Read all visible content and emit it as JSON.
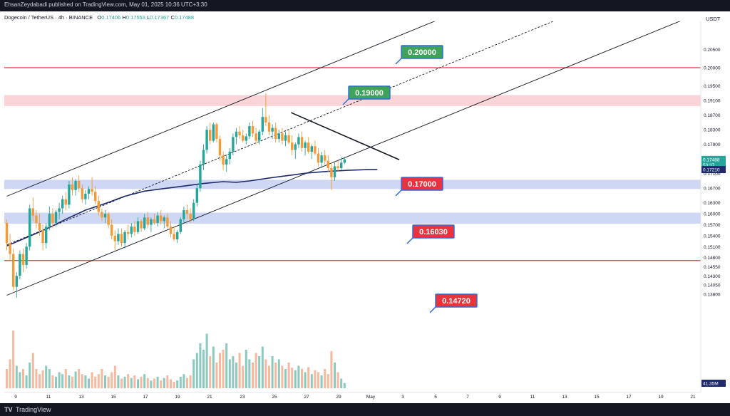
{
  "header": {
    "publisher_line": "EhsanZeydabadi published on TradingView.com, May 01, 2025 10:36 UTC+3:30"
  },
  "legend": {
    "symbol": "Dogecoin / TetherUS · 4h · BINANCE",
    "open_label": "O",
    "open": "0.17406",
    "high_label": "H",
    "high": "0.17553",
    "low_label": "L",
    "low": "0.17367",
    "close_label": "C",
    "close": "0.17488"
  },
  "price_axis": {
    "currency": "USDT",
    "ticks": [
      "0.20500",
      "0.20000",
      "0.19500",
      "0.19100",
      "0.18700",
      "0.18300",
      "0.17900",
      "0.17500",
      "0.17100",
      "0.16700",
      "0.16300",
      "0.16000",
      "0.15700",
      "0.15400",
      "0.15100",
      "0.14800",
      "0.14550",
      "0.14300",
      "0.14050",
      "0.13800"
    ],
    "last_price_label": "0.17488",
    "countdown_label": "53:37",
    "ma_label": "0.17210",
    "volume_label": "41.35M",
    "last_price_color": "#26a69a",
    "ma_color": "#1e2a6b"
  },
  "time_axis": {
    "ticks": [
      "9",
      "11",
      "13",
      "15",
      "17",
      "19",
      "21",
      "23",
      "25",
      "27",
      "29",
      "May",
      "3",
      "5",
      "7",
      "9",
      "11",
      "13",
      "15",
      "17",
      "19",
      "21"
    ]
  },
  "annotations": [
    {
      "label": "0.20000",
      "color": "#3fa35b"
    },
    {
      "label": "0.19000",
      "color": "#3fa35b"
    },
    {
      "label": "0.17000",
      "color": "#e8343f"
    },
    {
      "label": "0.16030",
      "color": "#e8343f"
    },
    {
      "label": "0.14720",
      "color": "#e8343f"
    }
  ],
  "footer": {
    "brand": "TradingView",
    "logo": "TV"
  },
  "chart_data": {
    "type": "candlestick",
    "title": "Dogecoin / TetherUS · 4h · BINANCE",
    "ylabel": "USDT",
    "ylim": [
      0.1352,
      0.2073
    ],
    "colors": {
      "up": "#26a69a",
      "down": "#f29b38",
      "ma": "#1e2a6b",
      "resistance": "#e8343f",
      "support_zone": "#c9d3f2",
      "resistance_zone": "#f9cfd3"
    },
    "horizontal_lines": [
      0.2,
      0.1472
    ],
    "zones": [
      {
        "from": 0.1895,
        "to": 0.1925,
        "kind": "resistance"
      },
      {
        "from": 0.1668,
        "to": 0.1693,
        "kind": "support"
      },
      {
        "from": 0.1573,
        "to": 0.1603,
        "kind": "support"
      }
    ],
    "trend_channel": {
      "upper": [
        [
          0,
          0.1648
        ],
        [
          113,
          0.2063
        ]
      ],
      "middle": [
        [
          0,
          0.1515
        ],
        [
          113,
          0.193
        ]
      ],
      "lower": [
        [
          0,
          0.1377
        ],
        [
          113,
          0.179
        ]
      ]
    },
    "descending_line": [
      [
        86.7,
        0.1877
      ],
      [
        119.7,
        0.1748
      ]
    ],
    "moving_average": [
      [
        0,
        0.1512
      ],
      [
        6,
        0.1535
      ],
      [
        12,
        0.1558
      ],
      [
        18,
        0.1585
      ],
      [
        24,
        0.161
      ],
      [
        30,
        0.1628
      ],
      [
        36,
        0.1648
      ],
      [
        42,
        0.1662
      ],
      [
        48,
        0.1669
      ],
      [
        54,
        0.1676
      ],
      [
        60,
        0.1683
      ],
      [
        66,
        0.1688
      ],
      [
        70,
        0.1686
      ],
      [
        74,
        0.169
      ],
      [
        80,
        0.1698
      ],
      [
        86,
        0.1705
      ],
      [
        92,
        0.1712
      ],
      [
        98,
        0.1716
      ],
      [
        104,
        0.1719
      ],
      [
        110,
        0.1721
      ],
      [
        113,
        0.1721
      ]
    ],
    "candles": [
      [
        0.1575,
        0.1585,
        0.15,
        0.152
      ],
      [
        0.152,
        0.1545,
        0.147,
        0.149
      ],
      [
        0.149,
        0.1505,
        0.139,
        0.14
      ],
      [
        0.14,
        0.144,
        0.137,
        0.143
      ],
      [
        0.143,
        0.15,
        0.142,
        0.149
      ],
      [
        0.149,
        0.1505,
        0.144,
        0.146
      ],
      [
        0.146,
        0.152,
        0.145,
        0.151
      ],
      [
        0.151,
        0.1625,
        0.15,
        0.1615
      ],
      [
        0.1615,
        0.1645,
        0.158,
        0.1595
      ],
      [
        0.1595,
        0.161,
        0.156,
        0.1575
      ],
      [
        0.1575,
        0.16,
        0.154,
        0.1555
      ],
      [
        0.1555,
        0.157,
        0.15,
        0.152
      ],
      [
        0.152,
        0.1575,
        0.1505,
        0.1565
      ],
      [
        0.1565,
        0.162,
        0.1555,
        0.16
      ],
      [
        0.16,
        0.1615,
        0.156,
        0.1575
      ],
      [
        0.1575,
        0.161,
        0.1565,
        0.1605
      ],
      [
        0.1605,
        0.163,
        0.1585,
        0.1615
      ],
      [
        0.1615,
        0.165,
        0.16,
        0.164
      ],
      [
        0.164,
        0.166,
        0.161,
        0.1625
      ],
      [
        0.1625,
        0.169,
        0.1615,
        0.168
      ],
      [
        0.168,
        0.17,
        0.165,
        0.1665
      ],
      [
        0.1665,
        0.1695,
        0.165,
        0.169
      ],
      [
        0.169,
        0.1705,
        0.166,
        0.167
      ],
      [
        0.167,
        0.168,
        0.163,
        0.164
      ],
      [
        0.164,
        0.1665,
        0.1625,
        0.1655
      ],
      [
        0.1655,
        0.1675,
        0.164,
        0.1668
      ],
      [
        0.1668,
        0.17,
        0.165,
        0.166
      ],
      [
        0.166,
        0.1675,
        0.1625,
        0.1635
      ],
      [
        0.1635,
        0.165,
        0.1595,
        0.1605
      ],
      [
        0.1605,
        0.1615,
        0.158,
        0.159
      ],
      [
        0.159,
        0.161,
        0.1575,
        0.16
      ],
      [
        0.16,
        0.1605,
        0.156,
        0.157
      ],
      [
        0.157,
        0.1585,
        0.153,
        0.154
      ],
      [
        0.154,
        0.1555,
        0.15,
        0.1525
      ],
      [
        0.1525,
        0.156,
        0.1515,
        0.1545
      ],
      [
        0.1545,
        0.156,
        0.151,
        0.152
      ],
      [
        0.152,
        0.1555,
        0.1505,
        0.155
      ],
      [
        0.155,
        0.157,
        0.153,
        0.1545
      ],
      [
        0.1545,
        0.1575,
        0.1535,
        0.1565
      ],
      [
        0.1565,
        0.158,
        0.154,
        0.155
      ],
      [
        0.155,
        0.159,
        0.1545,
        0.158
      ],
      [
        0.158,
        0.1585,
        0.155,
        0.156
      ],
      [
        0.156,
        0.16,
        0.1555,
        0.159
      ],
      [
        0.159,
        0.1605,
        0.156,
        0.157
      ],
      [
        0.157,
        0.159,
        0.155,
        0.1585
      ],
      [
        0.1585,
        0.16,
        0.157,
        0.1575
      ],
      [
        0.1575,
        0.1605,
        0.1565,
        0.1595
      ],
      [
        0.1595,
        0.161,
        0.157,
        0.158
      ],
      [
        0.158,
        0.1595,
        0.156,
        0.159
      ],
      [
        0.159,
        0.16,
        0.156,
        0.1565
      ],
      [
        0.1565,
        0.158,
        0.1535,
        0.1545
      ],
      [
        0.1545,
        0.1565,
        0.1525,
        0.153
      ],
      [
        0.153,
        0.1555,
        0.152,
        0.155
      ],
      [
        0.155,
        0.159,
        0.1545,
        0.1585
      ],
      [
        0.1585,
        0.162,
        0.1575,
        0.161
      ],
      [
        0.161,
        0.1625,
        0.1585,
        0.16
      ],
      [
        0.16,
        0.1615,
        0.1575,
        0.1585
      ],
      [
        0.1585,
        0.164,
        0.158,
        0.163
      ],
      [
        0.163,
        0.168,
        0.162,
        0.167
      ],
      [
        0.167,
        0.1745,
        0.166,
        0.1735
      ],
      [
        0.1735,
        0.179,
        0.172,
        0.1775
      ],
      [
        0.1775,
        0.184,
        0.1765,
        0.183
      ],
      [
        0.183,
        0.185,
        0.179,
        0.18
      ],
      [
        0.18,
        0.185,
        0.1795,
        0.1845
      ],
      [
        0.1845,
        0.185,
        0.1795,
        0.1805
      ],
      [
        0.1805,
        0.1815,
        0.1745,
        0.176
      ],
      [
        0.176,
        0.177,
        0.172,
        0.1735
      ],
      [
        0.1735,
        0.176,
        0.1715,
        0.175
      ],
      [
        0.175,
        0.178,
        0.1735,
        0.177
      ],
      [
        0.177,
        0.182,
        0.176,
        0.181
      ],
      [
        0.181,
        0.1835,
        0.179,
        0.1825
      ],
      [
        0.1825,
        0.184,
        0.1805,
        0.1815
      ],
      [
        0.1815,
        0.183,
        0.1795,
        0.18
      ],
      [
        0.18,
        0.182,
        0.179,
        0.1812
      ],
      [
        0.1812,
        0.185,
        0.1805,
        0.184
      ],
      [
        0.184,
        0.1855,
        0.181,
        0.182
      ],
      [
        0.182,
        0.1835,
        0.179,
        0.18
      ],
      [
        0.18,
        0.183,
        0.179,
        0.1825
      ],
      [
        0.1825,
        0.189,
        0.1815,
        0.1865
      ],
      [
        0.1865,
        0.193,
        0.184,
        0.185
      ],
      [
        0.185,
        0.187,
        0.1815,
        0.1825
      ],
      [
        0.1825,
        0.1845,
        0.1805,
        0.1835
      ],
      [
        0.1835,
        0.185,
        0.1795,
        0.1805
      ],
      [
        0.1805,
        0.183,
        0.1795,
        0.182
      ],
      [
        0.182,
        0.1835,
        0.179,
        0.18
      ],
      [
        0.18,
        0.1825,
        0.1785,
        0.1815
      ],
      [
        0.1815,
        0.183,
        0.179,
        0.1795
      ],
      [
        0.1795,
        0.1815,
        0.176,
        0.1775
      ],
      [
        0.1775,
        0.1795,
        0.175,
        0.179
      ],
      [
        0.179,
        0.182,
        0.178,
        0.181
      ],
      [
        0.181,
        0.1825,
        0.177,
        0.178
      ],
      [
        0.178,
        0.18,
        0.176,
        0.1795
      ],
      [
        0.1795,
        0.181,
        0.1765,
        0.177
      ],
      [
        0.177,
        0.179,
        0.175,
        0.1785
      ],
      [
        0.1785,
        0.18,
        0.176,
        0.1765
      ],
      [
        0.1765,
        0.178,
        0.173,
        0.174
      ],
      [
        0.174,
        0.177,
        0.1725,
        0.176
      ],
      [
        0.176,
        0.1775,
        0.1735,
        0.1745
      ],
      [
        0.1745,
        0.176,
        0.1715,
        0.1725
      ],
      [
        0.1725,
        0.174,
        0.1665,
        0.17
      ],
      [
        0.17,
        0.174,
        0.169,
        0.173
      ],
      [
        0.173,
        0.1745,
        0.1715,
        0.1725
      ],
      [
        0.1725,
        0.1755,
        0.172,
        0.174
      ],
      [
        0.174,
        0.1756,
        0.1736,
        0.1749
      ]
    ],
    "volume_levels": [
      0.3,
      0.45,
      0.9,
      0.35,
      0.25,
      0.3,
      0.2,
      0.4,
      0.55,
      0.3,
      0.22,
      0.28,
      0.35,
      0.3,
      0.2,
      0.18,
      0.25,
      0.22,
      0.3,
      0.2,
      0.18,
      0.26,
      0.3,
      0.22,
      0.2,
      0.15,
      0.25,
      0.18,
      0.22,
      0.3,
      0.2,
      0.18,
      0.25,
      0.35,
      0.2,
      0.15,
      0.18,
      0.22,
      0.16,
      0.2,
      0.14,
      0.18,
      0.22,
      0.16,
      0.12,
      0.15,
      0.18,
      0.12,
      0.16,
      0.2,
      0.14,
      0.1,
      0.12,
      0.18,
      0.22,
      0.16,
      0.2,
      0.45,
      0.55,
      0.7,
      0.6,
      0.85,
      0.5,
      0.65,
      0.4,
      0.55,
      0.6,
      0.7,
      0.45,
      0.5,
      0.4,
      0.55,
      0.35,
      0.6,
      0.45,
      0.4,
      0.55,
      0.5,
      0.65,
      0.45,
      0.35,
      0.5,
      0.4,
      0.45,
      0.35,
      0.3,
      0.4,
      0.32,
      0.28,
      0.35,
      0.3,
      0.25,
      0.33,
      0.22,
      0.28,
      0.25,
      0.2,
      0.3,
      0.22,
      0.58,
      0.4,
      0.25,
      0.15,
      0.08
    ]
  }
}
